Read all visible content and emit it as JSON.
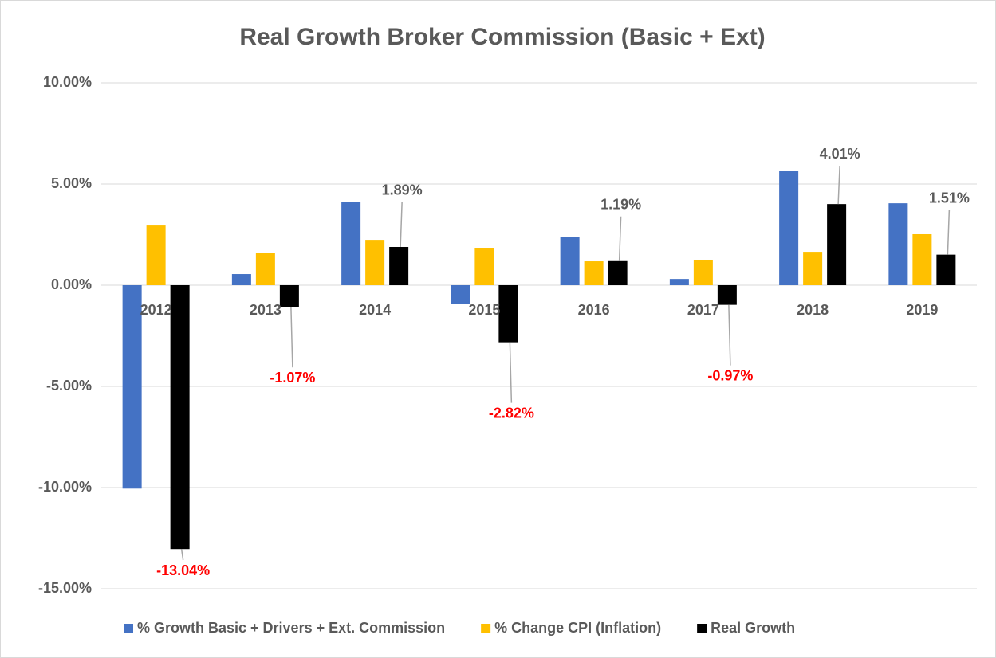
{
  "chart_data": {
    "type": "bar",
    "title": "Real Growth Broker Commission (Basic + Ext)",
    "categories": [
      "2012",
      "2013",
      "2014",
      "2015",
      "2016",
      "2017",
      "2018",
      "2019"
    ],
    "series": [
      {
        "name": "% Growth Basic + Drivers + Ext. Commission",
        "color": "#4472c4",
        "values": [
          -10.05,
          0.55,
          4.13,
          -0.94,
          2.4,
          0.31,
          5.63,
          4.05
        ]
      },
      {
        "name": "% Change CPI (Inflation)",
        "color": "#ffc000",
        "values": [
          2.95,
          1.61,
          2.24,
          1.85,
          1.18,
          1.26,
          1.65,
          2.52
        ]
      },
      {
        "name": "Real Growth",
        "color": "#000000",
        "values": [
          -13.04,
          -1.07,
          1.89,
          -2.82,
          1.19,
          -0.97,
          4.01,
          1.51
        ],
        "value_labels": [
          "-13.04%",
          "-1.07%",
          "1.89%",
          "-2.82%",
          "1.19%",
          "-0.97%",
          "4.01%",
          "1.51%"
        ]
      }
    ],
    "negative_label_color": "#ff0000",
    "ylim": [
      -15,
      10
    ],
    "yticks": [
      {
        "value": -15,
        "label": "-15.00%"
      },
      {
        "value": -10,
        "label": "-10.00%"
      },
      {
        "value": -5,
        "label": "-5.00%"
      },
      {
        "value": 0,
        "label": "0.00%"
      },
      {
        "value": 5,
        "label": "5.00%"
      },
      {
        "value": 10,
        "label": "10.00%"
      }
    ],
    "grid": true,
    "legend": "bottom"
  }
}
